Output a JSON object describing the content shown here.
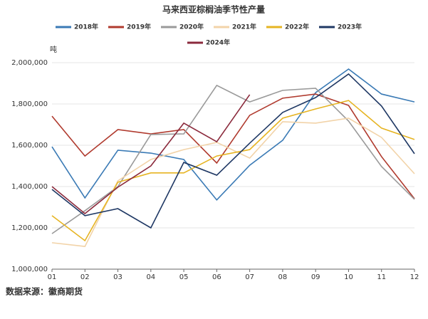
{
  "chart_data": {
    "type": "line",
    "title": "马来西亚棕榈油季节性产量",
    "y_unit": "吨",
    "source": "数据来源：徽商期货",
    "categories": [
      "01",
      "02",
      "03",
      "04",
      "05",
      "06",
      "07",
      "08",
      "09",
      "10",
      "11",
      "12"
    ],
    "series": [
      {
        "name": "2018年",
        "color": "#3a7ab5",
        "values": [
          1593000,
          1345000,
          1576000,
          1562000,
          1531000,
          1335000,
          1503000,
          1624000,
          1855000,
          1969000,
          1848000,
          1810000
        ]
      },
      {
        "name": "2019年",
        "color": "#b03a2e",
        "values": [
          1741000,
          1548000,
          1676000,
          1655000,
          1676000,
          1514000,
          1745000,
          1828000,
          1848000,
          1793000,
          1545000,
          1341000
        ]
      },
      {
        "name": "2020年",
        "color": "#9a9a9a",
        "values": [
          1172000,
          1283000,
          1400000,
          1652000,
          1655000,
          1890000,
          1810000,
          1866000,
          1876000,
          1717000,
          1497000,
          1338000
        ]
      },
      {
        "name": "2021年",
        "color": "#f2d3a8",
        "values": [
          1128000,
          1110000,
          1428000,
          1531000,
          1579000,
          1614000,
          1538000,
          1714000,
          1707000,
          1731000,
          1638000,
          1462000
        ]
      },
      {
        "name": "2022年",
        "color": "#e6b422",
        "values": [
          1259000,
          1138000,
          1421000,
          1466000,
          1466000,
          1548000,
          1579000,
          1731000,
          1776000,
          1817000,
          1683000,
          1628000
        ]
      },
      {
        "name": "2023年",
        "color": "#1f3864",
        "values": [
          1386000,
          1259000,
          1293000,
          1200000,
          1517000,
          1455000,
          1610000,
          1759000,
          1831000,
          1945000,
          1790000,
          1559000
        ]
      },
      {
        "name": "2024年",
        "color": "#8b2a3c",
        "values": [
          1400000,
          1269000,
          1397000,
          1500000,
          1707000,
          1617000,
          1845000,
          null,
          null,
          null,
          null,
          null
        ]
      }
    ],
    "ylim": [
      1000000,
      2000000
    ],
    "yticks": [
      {
        "value": 1000000,
        "label": "1,000,000"
      },
      {
        "value": 1200000,
        "label": "1,200,000"
      },
      {
        "value": 1400000,
        "label": "1,400,000"
      },
      {
        "value": 1600000,
        "label": "1,600,000"
      },
      {
        "value": 1800000,
        "label": "1,800,000"
      },
      {
        "value": 2000000,
        "label": "2,000,000"
      }
    ],
    "grid": true
  }
}
